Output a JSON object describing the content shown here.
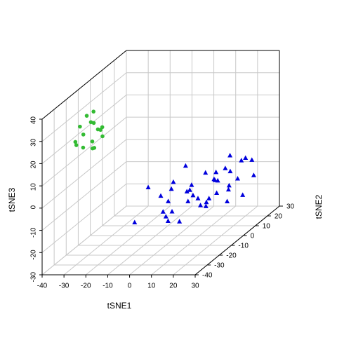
{
  "chart_data": {
    "type": "scatter3d",
    "xlabel": "tSNE1",
    "ylabel": "tSNE2",
    "zlabel": "tSNE3",
    "xlim": [
      -40,
      30
    ],
    "ylim": [
      -40,
      30
    ],
    "zlim": [
      -30,
      40
    ],
    "xticks": [
      -40,
      -30,
      -20,
      -10,
      0,
      10,
      20,
      30
    ],
    "yticks": [
      -40,
      -30,
      -20,
      -10,
      0,
      10,
      20,
      30
    ],
    "zticks": [
      -30,
      -20,
      -10,
      0,
      10,
      20,
      30,
      40
    ],
    "grid": true,
    "series": [
      {
        "color": "#33bb33",
        "marker": "circle",
        "x": [
          -24,
          -22,
          -26,
          -23,
          -20,
          -25,
          -21,
          -27,
          -22,
          -19,
          -24,
          -20,
          -23,
          -26,
          -18,
          -21
        ],
        "y": [
          -32,
          -30,
          -34,
          -28,
          -30,
          -33,
          -26,
          -36,
          -31,
          -28,
          -35,
          -33,
          -29,
          -37,
          -30,
          -34
        ],
        "z": [
          38,
          39,
          34,
          33,
          31,
          30,
          29,
          28,
          26,
          27,
          25,
          24,
          22,
          27,
          32,
          36
        ]
      },
      {
        "color": "#0000dd",
        "marker": "triangle",
        "x": [
          -8,
          -5,
          -12,
          0,
          4,
          8,
          12,
          15,
          18,
          22,
          20,
          14,
          10,
          6,
          2,
          -2,
          -6,
          -10,
          0,
          5,
          9,
          13,
          17,
          21,
          24,
          16,
          11,
          7,
          3,
          -1,
          -4,
          1,
          6,
          12,
          19,
          23,
          8,
          -3,
          14,
          10
        ],
        "y": [
          -10,
          -5,
          -14,
          -8,
          -12,
          -3,
          2,
          6,
          10,
          14,
          20,
          18,
          12,
          8,
          4,
          0,
          3,
          6,
          10,
          14,
          16,
          20,
          22,
          25,
          18,
          12,
          6,
          0,
          -4,
          -8,
          2,
          15,
          20,
          10,
          5,
          8,
          -6,
          12,
          -2,
          24
        ],
        "z": [
          -4,
          -10,
          -18,
          -20,
          -14,
          -6,
          -16,
          -8,
          -12,
          -18,
          -4,
          -2,
          -10,
          -20,
          -12,
          -6,
          -16,
          -22,
          -14,
          -8,
          -18,
          -10,
          -6,
          -14,
          -4,
          -20,
          -16,
          -12,
          -22,
          -18,
          -10,
          -20,
          -14,
          -6,
          -2,
          -8,
          -12,
          -4,
          -16,
          -20
        ]
      }
    ]
  }
}
